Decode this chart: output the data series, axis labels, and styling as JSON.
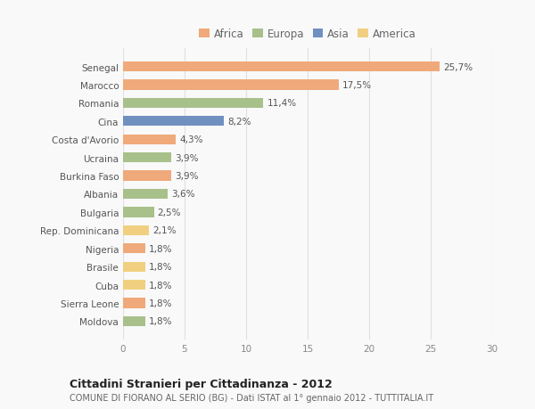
{
  "categories": [
    "Moldova",
    "Sierra Leone",
    "Cuba",
    "Brasile",
    "Nigeria",
    "Rep. Dominicana",
    "Bulgaria",
    "Albania",
    "Burkina Faso",
    "Ucraina",
    "Costa d'Avorio",
    "Cina",
    "Romania",
    "Marocco",
    "Senegal"
  ],
  "values": [
    1.8,
    1.8,
    1.8,
    1.8,
    1.8,
    2.1,
    2.5,
    3.6,
    3.9,
    3.9,
    4.3,
    8.2,
    11.4,
    17.5,
    25.7
  ],
  "labels": [
    "1,8%",
    "1,8%",
    "1,8%",
    "1,8%",
    "1,8%",
    "2,1%",
    "2,5%",
    "3,6%",
    "3,9%",
    "3,9%",
    "4,3%",
    "8,2%",
    "11,4%",
    "17,5%",
    "25,7%"
  ],
  "continents": [
    "Europa",
    "Africa",
    "America",
    "America",
    "Africa",
    "America",
    "Europa",
    "Europa",
    "Africa",
    "Europa",
    "Africa",
    "Asia",
    "Europa",
    "Africa",
    "Africa"
  ],
  "continent_colors": {
    "Africa": "#F0A97A",
    "Europa": "#A8C08A",
    "Asia": "#7090C0",
    "America": "#F0D080"
  },
  "legend_order": [
    "Africa",
    "Europa",
    "Asia",
    "America"
  ],
  "title_main": "Cittadini Stranieri per Cittadinanza - 2012",
  "title_sub": "COMUNE DI FIORANO AL SERIO (BG) - Dati ISTAT al 1° gennaio 2012 - TUTTITALIA.IT",
  "xlim": [
    0,
    30
  ],
  "xticks": [
    0,
    5,
    10,
    15,
    20,
    25,
    30
  ],
  "background_color": "#f9f9f9",
  "grid_color": "#e0e0e0",
  "bar_height": 0.55
}
